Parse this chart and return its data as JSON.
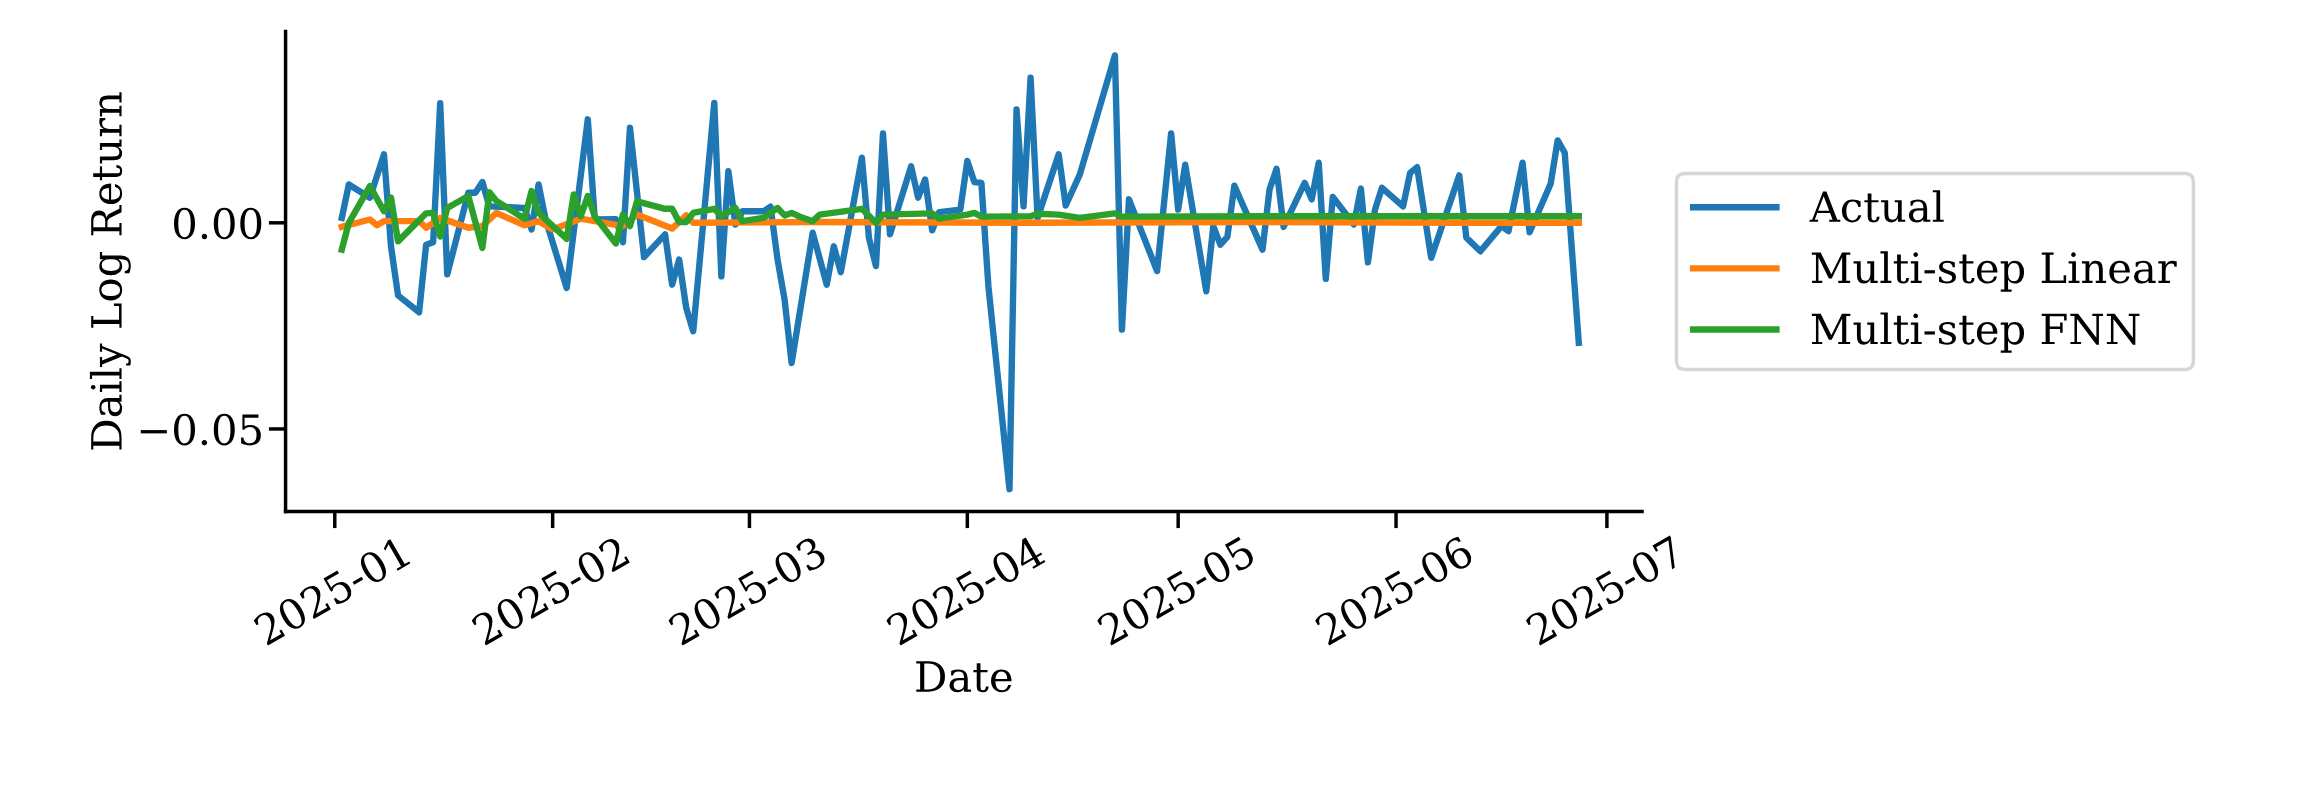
{
  "chart_data": {
    "type": "line",
    "xlabel": "Date",
    "ylabel": "Daily Log Return",
    "xlim": [
      "2024-12-25",
      "2025-07-06"
    ],
    "xticks": [
      {
        "value": "2025-01-01",
        "label": "2025-01"
      },
      {
        "value": "2025-02-01",
        "label": "2025-02"
      },
      {
        "value": "2025-03-01",
        "label": "2025-03"
      },
      {
        "value": "2025-04-01",
        "label": "2025-04"
      },
      {
        "value": "2025-05-01",
        "label": "2025-05"
      },
      {
        "value": "2025-06-01",
        "label": "2025-06"
      },
      {
        "value": "2025-07-01",
        "label": "2025-07"
      }
    ],
    "ylim": [
      -0.07,
      0.0464
    ],
    "yticks": [
      {
        "value": -0.05,
        "label": "−0.05"
      },
      {
        "value": 0,
        "label": "0.00"
      }
    ],
    "grid": false,
    "legend": "right",
    "marker": "none",
    "line_style": "solid",
    "series": [
      {
        "name": "Actual",
        "color": "#1f77b4",
        "x": [
          "2025-01-02",
          "2025-01-03",
          "2025-01-06",
          "2025-01-08",
          "2025-01-09",
          "2025-01-10",
          "2025-01-13",
          "2025-01-14",
          "2025-01-15",
          "2025-01-16",
          "2025-01-17",
          "2025-01-20",
          "2025-01-21",
          "2025-01-22",
          "2025-01-23",
          "2025-01-28",
          "2025-01-29",
          "2025-01-30",
          "2025-01-31",
          "2025-02-03",
          "2025-02-06",
          "2025-02-07",
          "2025-02-10",
          "2025-02-11",
          "2025-02-12",
          "2025-02-14",
          "2025-02-17",
          "2025-02-18",
          "2025-02-19",
          "2025-02-20",
          "2025-02-21",
          "2025-02-24",
          "2025-02-25",
          "2025-02-26",
          "2025-02-27",
          "2025-02-28",
          "2025-03-03",
          "2025-03-04",
          "2025-03-05",
          "2025-03-06",
          "2025-03-07",
          "2025-03-10",
          "2025-03-12",
          "2025-03-13",
          "2025-03-14",
          "2025-03-17",
          "2025-03-18",
          "2025-03-19",
          "2025-03-20",
          "2025-03-21",
          "2025-03-24",
          "2025-03-25",
          "2025-03-26",
          "2025-03-27",
          "2025-03-28",
          "2025-03-31",
          "2025-04-01",
          "2025-04-02",
          "2025-04-03",
          "2025-04-04",
          "2025-04-07",
          "2025-04-08",
          "2025-04-09",
          "2025-04-10",
          "2025-04-11",
          "2025-04-14",
          "2025-04-15",
          "2025-04-17",
          "2025-04-22",
          "2025-04-23",
          "2025-04-24",
          "2025-04-28",
          "2025-04-30",
          "2025-05-01",
          "2025-05-02",
          "2025-05-05",
          "2025-05-06",
          "2025-05-07",
          "2025-05-08",
          "2025-05-09",
          "2025-05-13",
          "2025-05-14",
          "2025-05-15",
          "2025-05-16",
          "2025-05-19",
          "2025-05-20",
          "2025-05-21",
          "2025-05-22",
          "2025-05-23",
          "2025-05-26",
          "2025-05-27",
          "2025-05-28",
          "2025-05-29",
          "2025-05-30",
          "2025-06-02",
          "2025-06-03",
          "2025-06-04",
          "2025-06-06",
          "2025-06-10",
          "2025-06-11",
          "2025-06-13",
          "2025-06-16",
          "2025-06-17",
          "2025-06-19",
          "2025-06-20",
          "2025-06-23",
          "2025-06-24",
          "2025-06-25",
          "2025-06-27"
        ],
        "values": [
          0.0012,
          0.0093,
          0.0061,
          0.0166,
          -0.0057,
          -0.0176,
          -0.0217,
          -0.0053,
          -0.0047,
          0.029,
          -0.0125,
          0.0073,
          0.0073,
          0.0099,
          0.004,
          0.0036,
          -0.0016,
          0.0093,
          0.0008,
          -0.0158,
          0.0251,
          0.0008,
          0.0009,
          -0.0047,
          0.0231,
          -0.0083,
          -0.0028,
          -0.015,
          -0.0089,
          -0.0206,
          -0.0263,
          0.0291,
          -0.013,
          0.0125,
          -0.0004,
          0.0028,
          0.0028,
          0.0039,
          -0.0089,
          -0.0186,
          -0.034,
          -0.0024,
          -0.015,
          -0.0057,
          -0.012,
          0.0158,
          -0.0036,
          -0.0105,
          0.0217,
          -0.0028,
          0.0137,
          0.0061,
          0.0105,
          -0.0018,
          0.0026,
          0.0032,
          0.015,
          0.0099,
          0.0097,
          -0.0154,
          -0.0646,
          0.0275,
          0.004,
          0.0352,
          0.0012,
          0.0166,
          0.0042,
          0.0117,
          0.0406,
          -0.0259,
          0.0057,
          -0.0117,
          0.0217,
          0.0032,
          0.0141,
          -0.0166,
          -0.0008,
          -0.0053,
          -0.0034,
          0.009,
          -0.0065,
          0.0081,
          0.0131,
          -0.001,
          0.0097,
          0.0057,
          0.0146,
          -0.0136,
          0.0063,
          -0.0004,
          0.0083,
          -0.0096,
          0.0032,
          0.0085,
          0.004,
          0.0121,
          0.0135,
          -0.0085,
          0.0115,
          -0.0036,
          -0.0069,
          -0.0008,
          -0.002,
          0.0146,
          -0.0023,
          0.0095,
          0.02,
          0.017,
          -0.0291
        ]
      },
      {
        "name": "Multi-step Linear",
        "color": "#ff7f0e",
        "x": [
          "2025-01-02",
          "2025-01-06",
          "2025-01-07",
          "2025-01-08",
          "2025-01-13",
          "2025-01-14",
          "2025-01-16",
          "2025-01-20",
          "2025-01-22",
          "2025-01-24",
          "2025-01-28",
          "2025-01-30",
          "2025-02-01",
          "2025-02-05",
          "2025-02-11",
          "2025-02-13",
          "2025-02-18",
          "2025-02-20",
          "2025-02-21",
          "2025-03-10",
          "2025-04-10",
          "2025-05-10",
          "2025-06-10",
          "2025-06-27"
        ],
        "values": [
          -0.001,
          0.0008,
          -0.0006,
          0.0004,
          0.0004,
          -0.0012,
          0.0012,
          -0.0012,
          -0.0008,
          0.0024,
          -0.0006,
          0.0004,
          -0.0016,
          0.001,
          -0.0008,
          0.002,
          -0.0014,
          0.0018,
          0.0,
          0.0002,
          0.0,
          0.0002,
          0.0,
          0.0
        ]
      },
      {
        "name": "Multi-step FNN",
        "color": "#2ca02c",
        "x": [
          "2025-01-02",
          "2025-01-03",
          "2025-01-06",
          "2025-01-08",
          "2025-01-09",
          "2025-01-10",
          "2025-01-14",
          "2025-01-15",
          "2025-01-16",
          "2025-01-17",
          "2025-01-20",
          "2025-01-22",
          "2025-01-23",
          "2025-01-24",
          "2025-01-28",
          "2025-01-29",
          "2025-01-30",
          "2025-02-03",
          "2025-02-04",
          "2025-02-05",
          "2025-02-06",
          "2025-02-07",
          "2025-02-10",
          "2025-02-11",
          "2025-02-12",
          "2025-02-13",
          "2025-02-17",
          "2025-02-18",
          "2025-02-19",
          "2025-02-20",
          "2025-02-21",
          "2025-02-24",
          "2025-02-25",
          "2025-02-27",
          "2025-02-28",
          "2025-03-03",
          "2025-03-05",
          "2025-03-06",
          "2025-03-07",
          "2025-03-08",
          "2025-03-10",
          "2025-03-11",
          "2025-03-17",
          "2025-03-19",
          "2025-03-20",
          "2025-03-27",
          "2025-03-28",
          "2025-04-01",
          "2025-04-02",
          "2025-04-03",
          "2025-04-10",
          "2025-04-11",
          "2025-04-14",
          "2025-04-17",
          "2025-04-22",
          "2025-04-23",
          "2025-05-15",
          "2025-06-10",
          "2025-06-27"
        ],
        "values": [
          -0.0065,
          0.0,
          0.0089,
          0.0028,
          0.0061,
          -0.0045,
          0.0023,
          0.0024,
          -0.0033,
          0.0036,
          0.0065,
          -0.0061,
          0.0074,
          0.0053,
          0.001,
          0.0077,
          0.0024,
          -0.0039,
          0.0069,
          0.0016,
          0.0065,
          0.0016,
          -0.005,
          0.002,
          -0.0008,
          0.0052,
          0.0034,
          0.0034,
          0.0002,
          0.0002,
          0.0024,
          0.0034,
          0.0016,
          0.0036,
          0.0004,
          0.0012,
          0.0036,
          0.0018,
          0.0024,
          0.0016,
          0.0004,
          0.002,
          0.0034,
          0.0,
          0.002,
          0.0023,
          0.001,
          0.002,
          0.0024,
          0.0015,
          0.0016,
          0.0022,
          0.002,
          0.0012,
          0.0023,
          0.0015,
          0.0016,
          0.0016,
          0.0016
        ]
      }
    ]
  }
}
